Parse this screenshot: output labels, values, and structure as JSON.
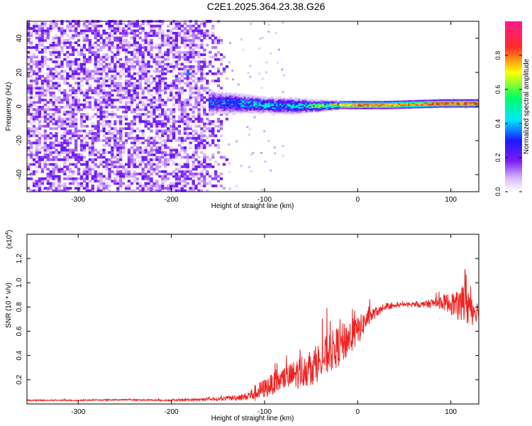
{
  "page_title": "C2E1.2025.364.23.38.G26",
  "chart_data": [
    {
      "type": "heatmap",
      "xlabel": "Height of straight line (km)",
      "ylabel": "Frequency (Hz)",
      "xlim": [
        -355,
        130
      ],
      "ylim": [
        -50,
        50
      ],
      "x_ticks": [
        -300,
        -200,
        -100,
        0,
        100
      ],
      "x_tick_labels": [
        "-300",
        "-200",
        "-100",
        "0",
        "100"
      ],
      "y_ticks": [
        -40,
        -20,
        0,
        20,
        40
      ],
      "y_tick_labels": [
        "-40",
        "-20",
        "0",
        "20",
        "40"
      ],
      "colorbar": {
        "label": "Normalized spectral amplitude",
        "range": [
          0,
          1
        ],
        "ticks": [
          0.0,
          0.2,
          0.4,
          0.6,
          0.8
        ],
        "tick_labels": [
          "0.0",
          "0.2",
          "0.4",
          "0.6",
          "0.8"
        ],
        "colors": [
          "#ffffff",
          "#d9b8ff",
          "#7a1cf0",
          "#1a1aff",
          "#00e5ff",
          "#00ff66",
          "#ffff00",
          "#ff2a2a",
          "#ff1a8c"
        ]
      },
      "noise_region": {
        "x_range": [
          -355,
          -140
        ],
        "freq_range": [
          -50,
          50
        ],
        "amplitude": 0.12
      },
      "feature": [
        {
          "x": -160,
          "freq": 2,
          "spread": 6,
          "amplitude": 0.3
        },
        {
          "x": -130,
          "freq": 1.5,
          "spread": 5,
          "amplitude": 0.35
        },
        {
          "x": -100,
          "freq": 0.5,
          "spread": 4,
          "amplitude": 0.4
        },
        {
          "x": -70,
          "freq": 0,
          "spread": 4,
          "amplitude": 0.4
        },
        {
          "x": -45,
          "freq": 0,
          "spread": 3,
          "amplitude": 0.5
        },
        {
          "x": -20,
          "freq": 0.5,
          "spread": 2,
          "amplitude": 0.7
        },
        {
          "x": 0,
          "freq": 0.5,
          "spread": 2,
          "amplitude": 0.85
        },
        {
          "x": 30,
          "freq": 0.5,
          "spread": 2,
          "amplitude": 0.8
        },
        {
          "x": 60,
          "freq": 1,
          "spread": 2,
          "amplitude": 0.85
        },
        {
          "x": 90,
          "freq": 1.5,
          "spread": 2,
          "amplitude": 0.9
        },
        {
          "x": 130,
          "freq": 1.5,
          "spread": 2,
          "amplitude": 0.85
        }
      ],
      "isolated_spot": {
        "x": -182,
        "freq": 20,
        "amplitude": 0.35
      }
    },
    {
      "type": "line",
      "xlabel": "Height of straight line (km)",
      "ylabel": "SNR (10 * v/v)",
      "y_multiplier_label": "(x10",
      "y_multiplier_exp": "4",
      "y_multiplier_close": ")",
      "xlim": [
        -355,
        130
      ],
      "ylim": [
        0,
        14000
      ],
      "x_ticks": [
        -300,
        -200,
        -100,
        0,
        100
      ],
      "x_tick_labels": [
        "-300",
        "-200",
        "-100",
        "0",
        "100"
      ],
      "y_ticks": [
        2000,
        4000,
        6000,
        8000,
        10000,
        12000
      ],
      "y_tick_labels": [
        "0.2",
        "0.4",
        "0.6",
        "0.8",
        "1.0",
        "1.2"
      ],
      "color": "#ee2222",
      "series": [
        {
          "x": [
            -355,
            -300,
            -250,
            -200,
            -150,
            -120,
            -110,
            -100,
            -90,
            -80,
            -70,
            -60,
            -50,
            -40,
            -30,
            -20,
            -10,
            0,
            10,
            20,
            30,
            40,
            50,
            60,
            70,
            80,
            90,
            100,
            110,
            115,
            120,
            125,
            130
          ],
          "y": [
            300,
            300,
            350,
            300,
            400,
            600,
            900,
            1300,
            1700,
            2000,
            2300,
            2700,
            3000,
            3600,
            4200,
            4800,
            5400,
            6000,
            7000,
            7600,
            7900,
            8100,
            8200,
            8200,
            8200,
            8300,
            8400,
            8300,
            8000,
            9000,
            8000,
            7800,
            7700
          ],
          "noise": [
            50,
            50,
            50,
            60,
            120,
            300,
            700,
            800,
            900,
            1000,
            1200,
            1400,
            1500,
            1600,
            1700,
            1700,
            1600,
            1200,
            800,
            400,
            200,
            150,
            150,
            200,
            250,
            400,
            600,
            900,
            1300,
            2500,
            1800,
            1200,
            600
          ]
        }
      ]
    }
  ]
}
